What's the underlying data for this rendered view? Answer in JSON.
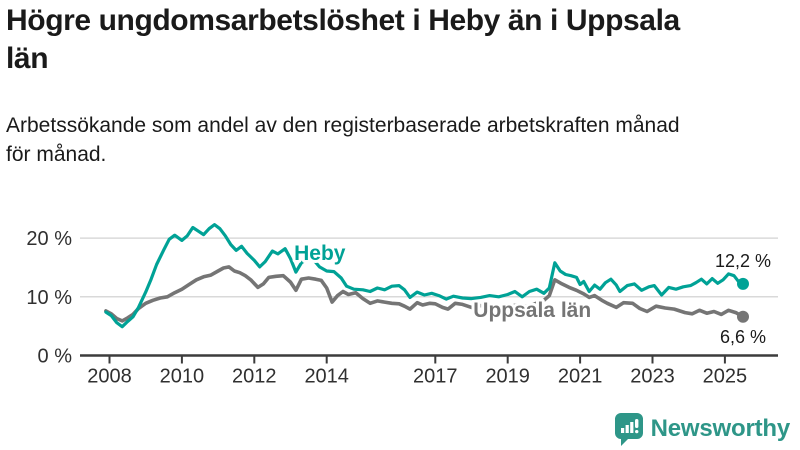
{
  "title": "Högre ungdomsarbetslöshet i Heby än i Uppsala län",
  "subtitle": "Arbetssökande som andel av den registerbaserade arbetskraften månad för månad.",
  "branding": {
    "name": "Newsworthy",
    "icon": "newsworthy-chart-bubble-icon",
    "color": "#2E9688"
  },
  "chart_data": {
    "type": "line",
    "title": "Högre ungdomsarbetslöshet i Heby än i Uppsala län",
    "subtitle": "Arbetssökande som andel av den registerbaserade arbetskraften månad för månad.",
    "xlabel": "",
    "ylabel": "",
    "grid": "horizontal-only",
    "legend_position": "inline-labels",
    "xlim": [
      2007.75,
      2025.9
    ],
    "ylim": [
      0,
      23.5
    ],
    "xticks": [
      2008,
      2010,
      2012,
      2014,
      2017,
      2019,
      2021,
      2023,
      2025
    ],
    "yticks": [
      {
        "value": 0,
        "label": "0 %"
      },
      {
        "value": 10,
        "label": "10 %"
      },
      {
        "value": 20,
        "label": "20 %"
      }
    ],
    "colors": {
      "grid": "#d9d9d9",
      "axis": "#3c3c3c",
      "tick_text": "#303030",
      "value_text": "#1a1a1a"
    },
    "series": [
      {
        "name": "Uppsala län",
        "color": "#757575",
        "line_width": 3.6,
        "end_value": 6.6,
        "end_label": "6,6 %",
        "end_label_offset": [
          23,
          26
        ],
        "name_label_pos": [
          2018.05,
          6.6
        ],
        "points": [
          [
            2007.9,
            7.6
          ],
          [
            2008.05,
            7.1
          ],
          [
            2008.2,
            6.3
          ],
          [
            2008.35,
            5.9
          ],
          [
            2008.5,
            6.4
          ],
          [
            2008.65,
            7.0
          ],
          [
            2008.8,
            8.0
          ],
          [
            2009.0,
            8.9
          ],
          [
            2009.2,
            9.4
          ],
          [
            2009.4,
            9.8
          ],
          [
            2009.6,
            10.0
          ],
          [
            2009.8,
            10.7
          ],
          [
            2010.0,
            11.3
          ],
          [
            2010.2,
            12.1
          ],
          [
            2010.4,
            12.9
          ],
          [
            2010.6,
            13.4
          ],
          [
            2010.8,
            13.7
          ],
          [
            2011.0,
            14.4
          ],
          [
            2011.15,
            14.9
          ],
          [
            2011.3,
            15.1
          ],
          [
            2011.45,
            14.4
          ],
          [
            2011.6,
            14.1
          ],
          [
            2011.75,
            13.6
          ],
          [
            2011.9,
            12.9
          ],
          [
            2012.1,
            11.6
          ],
          [
            2012.25,
            12.2
          ],
          [
            2012.4,
            13.3
          ],
          [
            2012.6,
            13.5
          ],
          [
            2012.8,
            13.6
          ],
          [
            2013.0,
            12.5
          ],
          [
            2013.15,
            11.1
          ],
          [
            2013.3,
            13.0
          ],
          [
            2013.5,
            13.2
          ],
          [
            2013.7,
            13.0
          ],
          [
            2013.85,
            12.8
          ],
          [
            2014.0,
            11.5
          ],
          [
            2014.15,
            9.1
          ],
          [
            2014.3,
            10.2
          ],
          [
            2014.45,
            10.9
          ],
          [
            2014.6,
            10.4
          ],
          [
            2014.8,
            10.7
          ],
          [
            2015.0,
            9.7
          ],
          [
            2015.2,
            8.9
          ],
          [
            2015.4,
            9.3
          ],
          [
            2015.6,
            9.1
          ],
          [
            2015.8,
            8.9
          ],
          [
            2016.0,
            8.8
          ],
          [
            2016.15,
            8.4
          ],
          [
            2016.3,
            7.9
          ],
          [
            2016.5,
            9.0
          ],
          [
            2016.65,
            8.6
          ],
          [
            2016.85,
            8.9
          ],
          [
            2017.0,
            8.8
          ],
          [
            2017.2,
            8.2
          ],
          [
            2017.35,
            7.9
          ],
          [
            2017.55,
            8.9
          ],
          [
            2017.75,
            8.7
          ],
          [
            2018.0,
            8.2
          ],
          [
            2018.25,
            8.5
          ],
          [
            2018.5,
            8.3
          ],
          [
            2018.75,
            8.1
          ],
          [
            2019.0,
            8.3
          ],
          [
            2019.25,
            8.6
          ],
          [
            2019.5,
            8.4
          ],
          [
            2019.75,
            8.8
          ],
          [
            2020.0,
            9.4
          ],
          [
            2020.15,
            10.2
          ],
          [
            2020.3,
            12.9
          ],
          [
            2020.5,
            12.2
          ],
          [
            2020.7,
            11.6
          ],
          [
            2020.9,
            11.1
          ],
          [
            2021.1,
            10.5
          ],
          [
            2021.25,
            9.9
          ],
          [
            2021.4,
            10.2
          ],
          [
            2021.6,
            9.4
          ],
          [
            2021.75,
            8.9
          ],
          [
            2022.0,
            8.2
          ],
          [
            2022.2,
            9.0
          ],
          [
            2022.45,
            8.9
          ],
          [
            2022.65,
            8.0
          ],
          [
            2022.85,
            7.5
          ],
          [
            2023.1,
            8.4
          ],
          [
            2023.35,
            8.1
          ],
          [
            2023.6,
            7.9
          ],
          [
            2023.9,
            7.3
          ],
          [
            2024.1,
            7.1
          ],
          [
            2024.3,
            7.7
          ],
          [
            2024.5,
            7.2
          ],
          [
            2024.7,
            7.5
          ],
          [
            2024.9,
            7.0
          ],
          [
            2025.1,
            7.7
          ],
          [
            2025.3,
            7.3
          ],
          [
            2025.5,
            6.6
          ]
        ]
      },
      {
        "name": "Heby",
        "color": "#00A296",
        "line_width": 3.2,
        "end_value": 12.2,
        "end_label": "12,2 %",
        "end_label_offset": [
          28,
          -17
        ],
        "name_label_pos": [
          2013.1,
          16.3
        ],
        "points": [
          [
            2007.9,
            7.4
          ],
          [
            2008.05,
            6.8
          ],
          [
            2008.2,
            5.6
          ],
          [
            2008.35,
            4.9
          ],
          [
            2008.5,
            5.8
          ],
          [
            2008.65,
            6.6
          ],
          [
            2008.8,
            8.2
          ],
          [
            2009.0,
            10.8
          ],
          [
            2009.15,
            13.0
          ],
          [
            2009.3,
            15.5
          ],
          [
            2009.5,
            18.0
          ],
          [
            2009.65,
            19.8
          ],
          [
            2009.8,
            20.5
          ],
          [
            2010.0,
            19.6
          ],
          [
            2010.15,
            20.4
          ],
          [
            2010.3,
            21.8
          ],
          [
            2010.45,
            21.2
          ],
          [
            2010.6,
            20.6
          ],
          [
            2010.75,
            21.6
          ],
          [
            2010.9,
            22.3
          ],
          [
            2011.05,
            21.6
          ],
          [
            2011.2,
            20.4
          ],
          [
            2011.35,
            18.9
          ],
          [
            2011.5,
            17.9
          ],
          [
            2011.65,
            18.6
          ],
          [
            2011.8,
            17.4
          ],
          [
            2012.0,
            16.2
          ],
          [
            2012.15,
            15.1
          ],
          [
            2012.3,
            16.0
          ],
          [
            2012.5,
            17.8
          ],
          [
            2012.65,
            17.3
          ],
          [
            2012.85,
            18.2
          ],
          [
            2013.0,
            16.5
          ],
          [
            2013.15,
            14.2
          ],
          [
            2013.3,
            15.8
          ],
          [
            2013.5,
            16.6
          ],
          [
            2013.65,
            16.2
          ],
          [
            2013.8,
            15.1
          ],
          [
            2014.0,
            14.4
          ],
          [
            2014.2,
            14.3
          ],
          [
            2014.4,
            13.2
          ],
          [
            2014.55,
            11.8
          ],
          [
            2014.75,
            11.3
          ],
          [
            2015.0,
            11.2
          ],
          [
            2015.2,
            10.9
          ],
          [
            2015.4,
            11.5
          ],
          [
            2015.6,
            11.2
          ],
          [
            2015.8,
            11.8
          ],
          [
            2016.0,
            11.9
          ],
          [
            2016.15,
            11.2
          ],
          [
            2016.3,
            9.9
          ],
          [
            2016.5,
            10.8
          ],
          [
            2016.7,
            10.3
          ],
          [
            2016.9,
            10.6
          ],
          [
            2017.1,
            10.2
          ],
          [
            2017.3,
            9.6
          ],
          [
            2017.5,
            10.1
          ],
          [
            2017.75,
            9.8
          ],
          [
            2018.0,
            9.7
          ],
          [
            2018.25,
            9.9
          ],
          [
            2018.5,
            10.2
          ],
          [
            2018.75,
            10.0
          ],
          [
            2019.0,
            10.4
          ],
          [
            2019.2,
            10.9
          ],
          [
            2019.4,
            10.0
          ],
          [
            2019.6,
            10.9
          ],
          [
            2019.8,
            11.3
          ],
          [
            2020.0,
            10.6
          ],
          [
            2020.15,
            11.5
          ],
          [
            2020.3,
            15.8
          ],
          [
            2020.45,
            14.4
          ],
          [
            2020.6,
            13.8
          ],
          [
            2020.75,
            13.6
          ],
          [
            2020.9,
            13.3
          ],
          [
            2021.0,
            12.1
          ],
          [
            2021.1,
            12.6
          ],
          [
            2021.25,
            10.9
          ],
          [
            2021.4,
            12.0
          ],
          [
            2021.55,
            11.3
          ],
          [
            2021.7,
            12.4
          ],
          [
            2021.85,
            13.0
          ],
          [
            2022.0,
            12.0
          ],
          [
            2022.1,
            10.9
          ],
          [
            2022.3,
            11.9
          ],
          [
            2022.5,
            12.2
          ],
          [
            2022.7,
            11.1
          ],
          [
            2022.9,
            11.7
          ],
          [
            2023.05,
            11.9
          ],
          [
            2023.25,
            10.3
          ],
          [
            2023.45,
            11.6
          ],
          [
            2023.65,
            11.3
          ],
          [
            2023.85,
            11.7
          ],
          [
            2024.05,
            11.9
          ],
          [
            2024.2,
            12.4
          ],
          [
            2024.35,
            13.0
          ],
          [
            2024.5,
            12.2
          ],
          [
            2024.65,
            13.1
          ],
          [
            2024.8,
            12.3
          ],
          [
            2024.95,
            12.9
          ],
          [
            2025.1,
            13.9
          ],
          [
            2025.25,
            13.6
          ],
          [
            2025.4,
            12.4
          ],
          [
            2025.5,
            12.2
          ]
        ]
      }
    ]
  }
}
